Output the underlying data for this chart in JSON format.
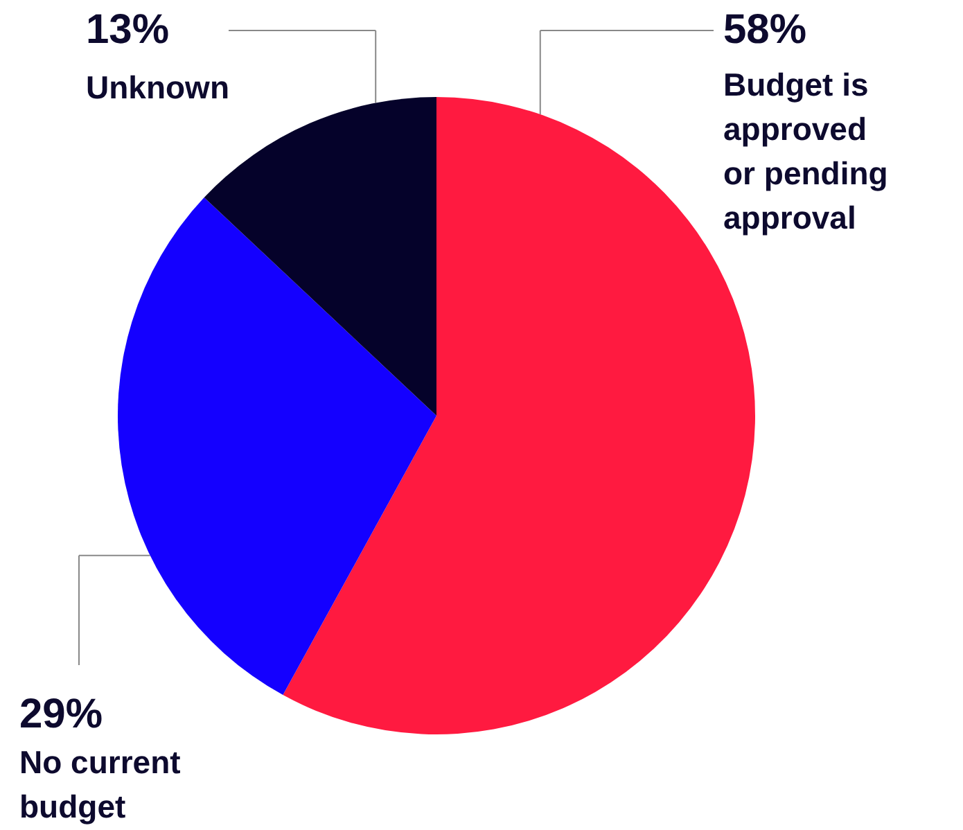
{
  "chart_data": {
    "type": "pie",
    "categories": [
      "Budget is approved or pending approval",
      "No current budget",
      "Unknown"
    ],
    "values": [
      58,
      29,
      13
    ],
    "colors": [
      "#ff1a40",
      "#1400ff",
      "#05022a"
    ],
    "value_labels": [
      "58%",
      "29%",
      "13%"
    ]
  }
}
